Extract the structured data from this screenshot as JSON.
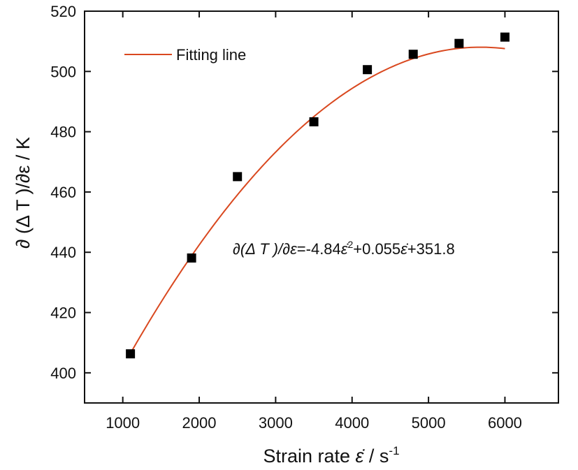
{
  "chart_data": {
    "type": "scatter",
    "xlabel": {
      "prefix": "Strain rate ",
      "symbol": "ε̇",
      "unit": " / s",
      "unit_sup": "-1"
    },
    "ylabel": "∂ (Δ T )/∂ε / K",
    "xlim": [
      500,
      6700
    ],
    "ylim": [
      390,
      520
    ],
    "xticks": [
      "1000",
      "2000",
      "3000",
      "4000",
      "5000",
      "6000"
    ],
    "yticks": [
      "400",
      "420",
      "440",
      "460",
      "480",
      "500",
      "520"
    ],
    "series": [
      {
        "kind": "points",
        "marker": "square",
        "color": "#000000",
        "x": [
          1100,
          1900,
          2500,
          3500,
          4200,
          4800,
          5400,
          6000
        ],
        "y": [
          406.3,
          438.1,
          465.1,
          483.3,
          500.6,
          505.7,
          509.3,
          511.4
        ]
      },
      {
        "kind": "line",
        "name": "Fitting line",
        "color": "#d9481f",
        "x_range": [
          1100,
          6000
        ],
        "coefficients": {
          "a": -4.84,
          "b": 0.055,
          "c": 351.8
        }
      }
    ],
    "legend": {
      "label": "Fitting line",
      "position": "top-left"
    },
    "annotation": {
      "lhs": "∂(Δ T )/∂ε",
      "coef_a": "=-4.84",
      "var_a": "ε̇",
      "exp_a": "2",
      "coef_b": "+0.055",
      "var_b": "ε̇",
      "constant": "+351.8"
    },
    "grid": false
  }
}
